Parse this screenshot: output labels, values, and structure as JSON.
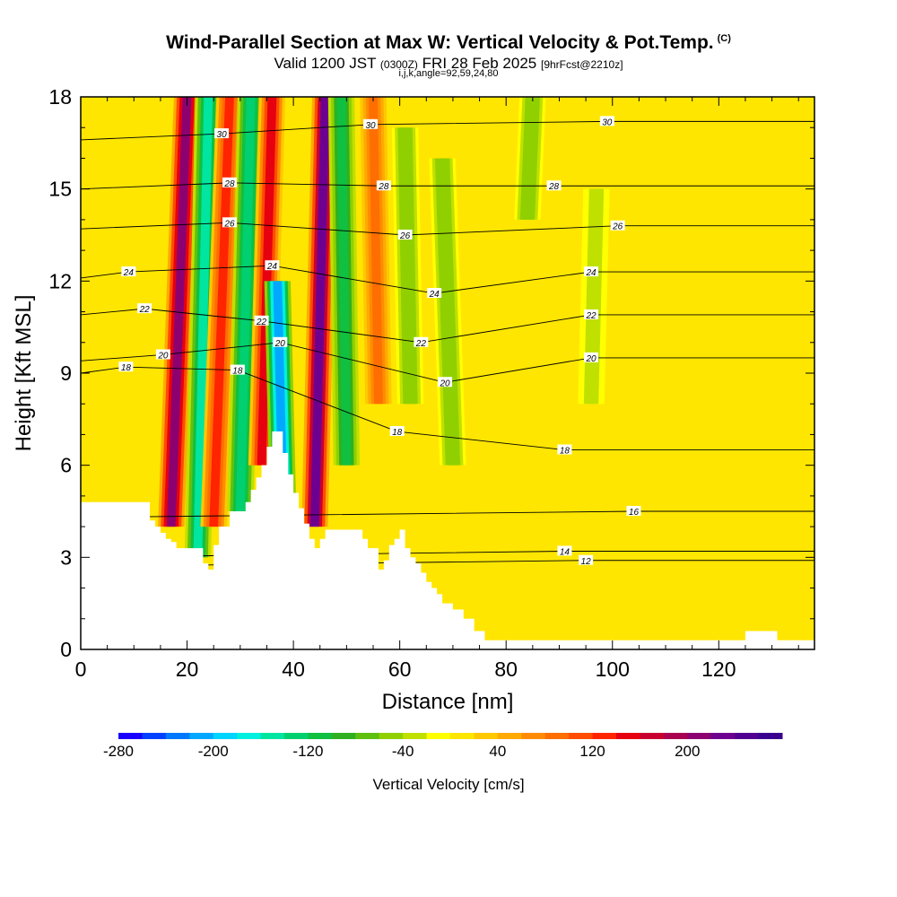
{
  "header": {
    "title": "Wind-Parallel Section at Max W: Vertical Velocity & Pot.Temp.",
    "title_mark": "(C)",
    "subtitle_valid": "Valid 1200 JST",
    "subtitle_z": "(0300Z)",
    "subtitle_date": "FRI 28 Feb 2025",
    "subtitle_fcst": "[9hrFcst@2210z]",
    "subtitle_ijk": "i,j,k,angle=92,59,24,80"
  },
  "chart_data": {
    "type": "heatmap",
    "xlabel": "Distance [nm]",
    "ylabel": "Height [Kft MSL]",
    "xlim": [
      0,
      138
    ],
    "ylim": [
      0,
      18
    ],
    "x_ticks": [
      0,
      20,
      40,
      60,
      80,
      100,
      120
    ],
    "y_ticks": [
      0,
      3,
      6,
      9,
      12,
      15,
      18
    ],
    "colorbar": {
      "label": "Vertical Velocity [cm/s]",
      "min": -280,
      "max": 280,
      "step": 20,
      "tick_labels": [
        "-280",
        "-200",
        "-120",
        "-40",
        "40",
        "120",
        "200"
      ],
      "tick_values": [
        -280,
        -200,
        -120,
        -40,
        40,
        120,
        200
      ],
      "colors": [
        "#1a00ff",
        "#0040ff",
        "#0078ff",
        "#00a8ff",
        "#00d4ff",
        "#00f0e0",
        "#00e6a0",
        "#00d070",
        "#10c040",
        "#30b020",
        "#60c010",
        "#90d000",
        "#c0e000",
        "#ffff00",
        "#ffe600",
        "#ffc800",
        "#ffaa00",
        "#ff8c00",
        "#ff6e00",
        "#ff4c00",
        "#ff2400",
        "#e60010",
        "#c80030",
        "#aa0050",
        "#8c0070",
        "#6e0090",
        "#500090",
        "#3a0090"
      ]
    },
    "vertical_velocity_features": [
      {
        "x": 17,
        "x_top": 20,
        "y_bottom": 4,
        "y_top": 18,
        "w": 200
      },
      {
        "x": 22,
        "x_top": 24,
        "y_bottom": 3,
        "y_top": 18,
        "w": -160
      },
      {
        "x": 25,
        "x_top": 28,
        "y_bottom": 4,
        "y_top": 18,
        "w": 120
      },
      {
        "x": 30,
        "x_top": 32,
        "y_bottom": 4.5,
        "y_top": 18,
        "w": -140
      },
      {
        "x": 34,
        "x_top": 36,
        "y_bottom": 6,
        "y_top": 18,
        "w": 140
      },
      {
        "x": 38,
        "x_top": 37,
        "y_bottom": 5,
        "y_top": 12,
        "w": -220
      },
      {
        "x": 44,
        "x_top": 46,
        "y_bottom": 4,
        "y_top": 18,
        "w": 220
      },
      {
        "x": 50,
        "x_top": 49,
        "y_bottom": 6,
        "y_top": 18,
        "w": -120
      },
      {
        "x": 56,
        "x_top": 55,
        "y_bottom": 8,
        "y_top": 18,
        "w": 80
      },
      {
        "x": 62,
        "x_top": 61,
        "y_bottom": 8,
        "y_top": 17,
        "w": -60
      },
      {
        "x": 70,
        "x_top": 68,
        "y_bottom": 6,
        "y_top": 16,
        "w": -60
      },
      {
        "x": 84,
        "x_top": 85,
        "y_bottom": 14,
        "y_top": 18,
        "w": -60
      },
      {
        "x": 96,
        "x_top": 97,
        "y_bottom": 8,
        "y_top": 15,
        "w": -40
      }
    ],
    "terrain_heights": [
      [
        0,
        4.8
      ],
      [
        13,
        4.8
      ],
      [
        13,
        4.2
      ],
      [
        14,
        4.0
      ],
      [
        15,
        3.8
      ],
      [
        16,
        3.6
      ],
      [
        17,
        3.5
      ],
      [
        18,
        3.3
      ],
      [
        22,
        3.3
      ],
      [
        23,
        2.8
      ],
      [
        24,
        2.6
      ],
      [
        25,
        3.4
      ],
      [
        26,
        4.0
      ],
      [
        28,
        4.5
      ],
      [
        30,
        4.5
      ],
      [
        31,
        4.8
      ],
      [
        32,
        5.2
      ],
      [
        33,
        5.6
      ],
      [
        34,
        6.0
      ],
      [
        35,
        6.6
      ],
      [
        36,
        7.1
      ],
      [
        37,
        7.1
      ],
      [
        38,
        6.4
      ],
      [
        39,
        5.7
      ],
      [
        40,
        5.1
      ],
      [
        41,
        4.6
      ],
      [
        42,
        4.1
      ],
      [
        43,
        3.6
      ],
      [
        44,
        3.3
      ],
      [
        45,
        3.6
      ],
      [
        46,
        3.9
      ],
      [
        52,
        3.9
      ],
      [
        53,
        3.6
      ],
      [
        54,
        3.3
      ],
      [
        55,
        3.3
      ],
      [
        56,
        2.6
      ],
      [
        57,
        2.9
      ],
      [
        58,
        3.4
      ],
      [
        59,
        3.6
      ],
      [
        60,
        3.9
      ],
      [
        61,
        3.3
      ],
      [
        62,
        3.0
      ],
      [
        63,
        2.8
      ],
      [
        64,
        2.5
      ],
      [
        65,
        2.2
      ],
      [
        66,
        2.0
      ],
      [
        67,
        1.8
      ],
      [
        68,
        1.5
      ],
      [
        70,
        1.3
      ],
      [
        72,
        1.0
      ],
      [
        74,
        0.6
      ],
      [
        76,
        0.3
      ],
      [
        78,
        0.3
      ],
      [
        124,
        0.3
      ],
      [
        125,
        0.6
      ],
      [
        130,
        0.6
      ],
      [
        131,
        0.3
      ],
      [
        138,
        0.3
      ]
    ],
    "isentropes_approx_label_note": "isentrope labels (°C potential temperature) as printed",
    "isentrope_labels": [
      {
        "text": "30",
        "x": 26.5,
        "y": 16.8
      },
      {
        "text": "30",
        "x": 54.5,
        "y": 17.1
      },
      {
        "text": "30",
        "x": 99,
        "y": 17.2
      },
      {
        "text": "28",
        "x": 28,
        "y": 15.2
      },
      {
        "text": "28",
        "x": 57,
        "y": 15.1
      },
      {
        "text": "28",
        "x": 89,
        "y": 15.1
      },
      {
        "text": "26",
        "x": 28,
        "y": 13.9
      },
      {
        "text": "26",
        "x": 61,
        "y": 13.5
      },
      {
        "text": "26",
        "x": 101,
        "y": 13.8
      },
      {
        "text": "24",
        "x": 9,
        "y": 12.3
      },
      {
        "text": "24",
        "x": 36,
        "y": 12.5
      },
      {
        "text": "24",
        "x": 66.5,
        "y": 11.6
      },
      {
        "text": "24",
        "x": 96,
        "y": 12.3
      },
      {
        "text": "22",
        "x": 12,
        "y": 11.1
      },
      {
        "text": "22",
        "x": 34,
        "y": 10.7
      },
      {
        "text": "22",
        "x": 64,
        "y": 10.0
      },
      {
        "text": "22",
        "x": 96,
        "y": 10.9
      },
      {
        "text": "20",
        "x": 15.5,
        "y": 9.6
      },
      {
        "text": "20",
        "x": 37.5,
        "y": 10.0
      },
      {
        "text": "20",
        "x": 68.5,
        "y": 8.7
      },
      {
        "text": "20",
        "x": 96,
        "y": 9.5
      },
      {
        "text": "18",
        "x": 8.5,
        "y": 9.2
      },
      {
        "text": "18",
        "x": 29.5,
        "y": 9.1
      },
      {
        "text": "18",
        "x": 59.5,
        "y": 7.1
      },
      {
        "text": "18",
        "x": 91,
        "y": 6.5
      },
      {
        "text": "16",
        "x": 104,
        "y": 4.5
      },
      {
        "text": "14",
        "x": 91,
        "y": 3.2
      },
      {
        "text": "12",
        "x": 95,
        "y": 2.9
      }
    ]
  }
}
